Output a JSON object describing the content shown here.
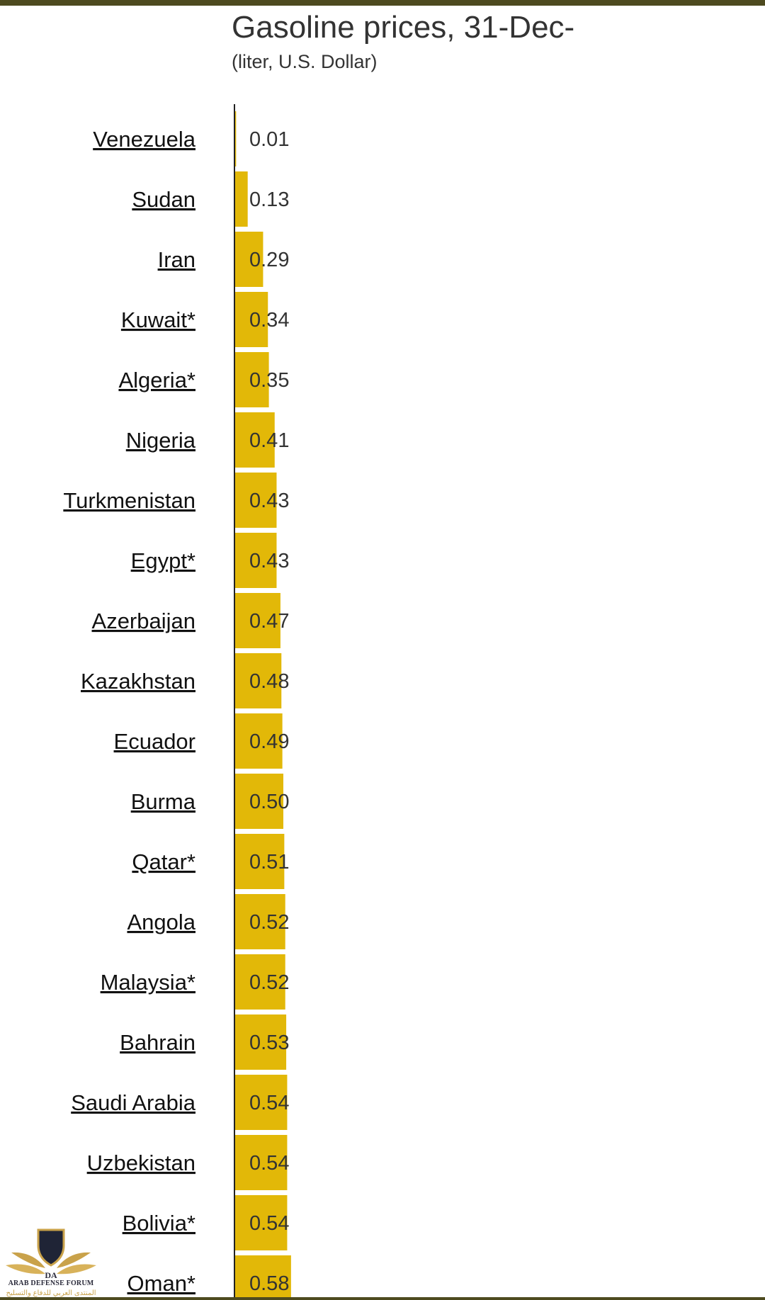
{
  "colors": {
    "bar": "#e2b808",
    "axis": "#222222",
    "stripe": "#4d4a1f"
  },
  "watermark": {
    "line1": "ARAB DEFENSE FORUM",
    "line2": "المنتدى العربي للدفاع والتسليح"
  },
  "chart_data": {
    "type": "bar",
    "orientation": "horizontal",
    "title": "Gasoline prices, 31-Dec-",
    "subtitle": "(liter, U.S. Dollar)",
    "categories": [
      "Venezuela",
      "Sudan",
      "Iran",
      "Kuwait*",
      "Algeria*",
      "Nigeria",
      "Turkmenistan",
      "Egypt*",
      "Azerbaijan",
      "Kazakhstan",
      "Ecuador",
      "Burma",
      "Qatar*",
      "Angola",
      "Malaysia*",
      "Bahrain",
      "Saudi Arabia",
      "Uzbekistan",
      "Bolivia*",
      "Oman*"
    ],
    "values": [
      0.01,
      0.13,
      0.29,
      0.34,
      0.35,
      0.41,
      0.43,
      0.43,
      0.47,
      0.48,
      0.49,
      0.5,
      0.51,
      0.52,
      0.52,
      0.53,
      0.54,
      0.54,
      0.54,
      0.58
    ],
    "value_labels": [
      "0.01",
      "0.13",
      "0.29",
      "0.34",
      "0.35",
      "0.41",
      "0.43",
      "0.43",
      "0.47",
      "0.48",
      "0.49",
      "0.50",
      "0.51",
      "0.52",
      "0.52",
      "0.53",
      "0.54",
      "0.54",
      "0.54",
      "0.58"
    ],
    "xlim": [
      0,
      5.5
    ],
    "grid": false,
    "legend": "none"
  }
}
